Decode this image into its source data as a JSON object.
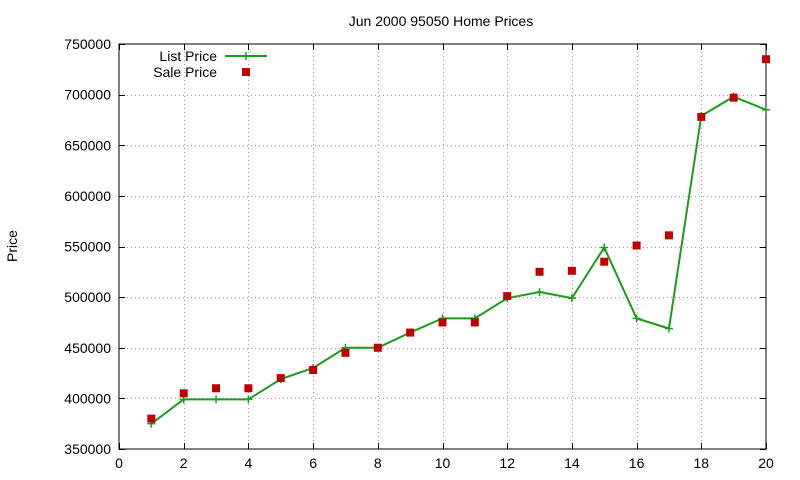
{
  "chart_data": {
    "type": "line",
    "title": "Jun 2000 95050 Home Prices",
    "xlabel": "",
    "ylabel": "Price",
    "xlim": [
      0,
      20
    ],
    "ylim": [
      350000,
      750000
    ],
    "x_ticks": [
      0,
      2,
      4,
      6,
      8,
      10,
      12,
      14,
      16,
      18,
      20
    ],
    "y_ticks": [
      350000,
      400000,
      450000,
      500000,
      550000,
      600000,
      650000,
      700000,
      750000
    ],
    "grid": true,
    "legend_position": "top-left",
    "series": [
      {
        "name": "List Price",
        "style": "lines-points",
        "color": "#1a9e1a",
        "marker": "plus",
        "x": [
          1,
          2,
          3,
          4,
          5,
          6,
          7,
          8,
          9,
          10,
          11,
          12,
          13,
          14,
          15,
          16,
          17,
          18,
          19,
          20
        ],
        "y": [
          375000,
          399000,
          399000,
          399000,
          419000,
          430000,
          450000,
          450000,
          465000,
          479000,
          479000,
          499000,
          505000,
          499000,
          549000,
          479000,
          469000,
          679000,
          698000,
          685000
        ]
      },
      {
        "name": "Sale Price",
        "style": "points",
        "color": "#c00000",
        "marker": "square",
        "x": [
          1,
          2,
          3,
          4,
          5,
          6,
          7,
          8,
          9,
          10,
          11,
          12,
          13,
          14,
          15,
          16,
          17,
          18,
          19,
          20
        ],
        "y": [
          380000,
          405000,
          410000,
          410000,
          420000,
          428000,
          445000,
          450000,
          465000,
          475000,
          475000,
          501000,
          525000,
          526000,
          535000,
          551000,
          561000,
          678000,
          697000,
          735000
        ]
      }
    ]
  }
}
